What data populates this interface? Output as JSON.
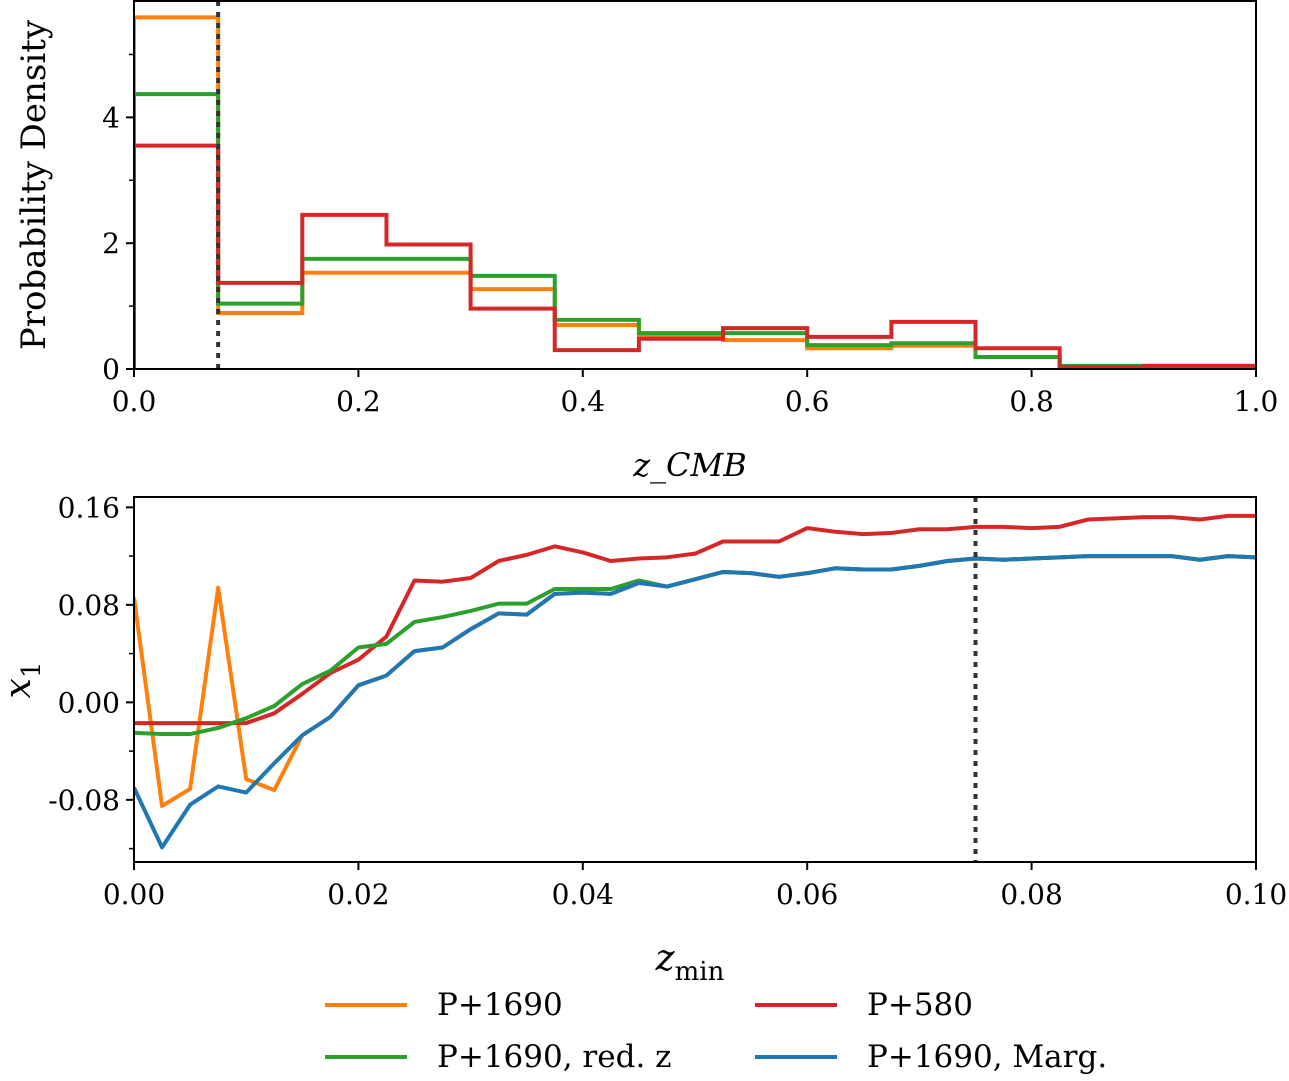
{
  "chart_data": [
    {
      "type": "histogram",
      "title": "",
      "xlabel": "z_CMB",
      "ylabel": "Probability Density",
      "xlim": [
        0,
        1.0
      ],
      "ylim": [
        0,
        5.85
      ],
      "xticks": [
        "0.0",
        "0.2",
        "0.4",
        "0.6",
        "0.8",
        "1.0"
      ],
      "yticks": [
        "0",
        "2",
        "4"
      ],
      "bin_edges": [
        0,
        0.075,
        0.15,
        0.225,
        0.3,
        0.375,
        0.45,
        0.525,
        0.6,
        0.675,
        0.75,
        0.825,
        0.9,
        0.975,
        1.0
      ],
      "vline": 0.075,
      "series": [
        {
          "name": "P+1690",
          "color": "#ff7f0e",
          "values": [
            5.59,
            0.89,
            1.53,
            1.53,
            1.27,
            0.7,
            0.53,
            0.46,
            0.33,
            0.37,
            0.19,
            0.04,
            0.04,
            0.04
          ]
        },
        {
          "name": "P+1690, red. z",
          "color": "#2ca02c",
          "values": [
            4.37,
            1.04,
            1.75,
            1.75,
            1.48,
            0.78,
            0.57,
            0.57,
            0.38,
            0.41,
            0.19,
            0.05,
            0.05,
            0.05
          ]
        },
        {
          "name": "P+580",
          "color": "#d62728",
          "values": [
            3.55,
            1.37,
            2.45,
            1.98,
            0.96,
            0.3,
            0.48,
            0.65,
            0.51,
            0.75,
            0.33,
            0.03,
            0.05,
            0.05
          ]
        }
      ]
    },
    {
      "type": "line",
      "title": "",
      "xlabel": "z_min",
      "ylabel": "x_1",
      "xlim": [
        0,
        0.1
      ],
      "ylim": [
        -0.131,
        0.1685
      ],
      "xticks": [
        "0.00",
        "0.02",
        "0.04",
        "0.06",
        "0.08",
        "0.10"
      ],
      "yticks": [
        "0.16",
        "0.08",
        "0.00",
        "-0.08"
      ],
      "x_start": 0,
      "x_step": 0.0025,
      "vline": 0.075,
      "series": [
        {
          "name": "P+1690",
          "color": "#ff7f0e",
          "values": [
            0.086,
            -0.085,
            -0.071,
            0.094,
            -0.063,
            -0.072,
            -0.027,
            -0.012,
            0.014,
            0.022,
            0.042,
            0.045,
            0.06,
            0.073,
            0.072,
            0.089,
            0.09,
            0.089,
            0.098,
            0.095,
            0.101,
            0.107,
            0.106,
            0.103,
            0.106,
            0.11,
            0.109,
            0.109,
            0.112,
            0.116,
            0.118,
            0.117,
            0.118,
            0.119,
            0.12,
            0.12,
            0.12,
            0.12,
            0.117,
            0.12,
            0.119
          ]
        },
        {
          "name": "P+580",
          "color": "#d62728",
          "values": [
            -0.017,
            -0.017,
            -0.017,
            -0.017,
            -0.017,
            -0.009,
            0.007,
            0.024,
            0.035,
            0.054,
            0.1,
            0.099,
            0.102,
            0.116,
            0.121,
            0.128,
            0.123,
            0.116,
            0.118,
            0.119,
            0.122,
            0.132,
            0.132,
            0.132,
            0.143,
            0.14,
            0.138,
            0.139,
            0.142,
            0.142,
            0.144,
            0.144,
            0.143,
            0.144,
            0.15,
            0.151,
            0.152,
            0.152,
            0.15,
            0.153,
            0.153
          ]
        },
        {
          "name": "P+1690, red. z",
          "color": "#2ca02c",
          "values": [
            -0.025,
            -0.026,
            -0.026,
            -0.021,
            -0.013,
            -0.003,
            0.015,
            0.026,
            0.045,
            0.048,
            0.066,
            0.07,
            0.075,
            0.081,
            0.081,
            0.093,
            0.093,
            0.093,
            0.1,
            0.095,
            0.101,
            0.107,
            0.106,
            0.103,
            0.106,
            0.11,
            0.109,
            0.109,
            0.112,
            0.116,
            0.118,
            0.117,
            0.118,
            0.119,
            0.12,
            0.12,
            0.12,
            0.12,
            0.117,
            0.12,
            0.119
          ]
        },
        {
          "name": "P+1690, Marg.",
          "color": "#1f77b4",
          "values": [
            -0.07,
            -0.119,
            -0.084,
            -0.069,
            -0.074,
            -0.05,
            -0.027,
            -0.012,
            0.014,
            0.022,
            0.042,
            0.045,
            0.06,
            0.073,
            0.072,
            0.089,
            0.09,
            0.089,
            0.098,
            0.095,
            0.101,
            0.107,
            0.106,
            0.103,
            0.106,
            0.11,
            0.109,
            0.109,
            0.112,
            0.116,
            0.118,
            0.117,
            0.118,
            0.119,
            0.12,
            0.12,
            0.12,
            0.12,
            0.117,
            0.12,
            0.119
          ]
        }
      ]
    }
  ],
  "legend": {
    "placement": "bottom",
    "entries": [
      {
        "label": "P+1690",
        "color": "#ff7f0e"
      },
      {
        "label": "P+580",
        "color": "#d62728"
      },
      {
        "label": "P+1690, red. z",
        "color": "#2ca02c"
      },
      {
        "label": "P+1690, Marg.",
        "color": "#1f77b4"
      }
    ]
  }
}
